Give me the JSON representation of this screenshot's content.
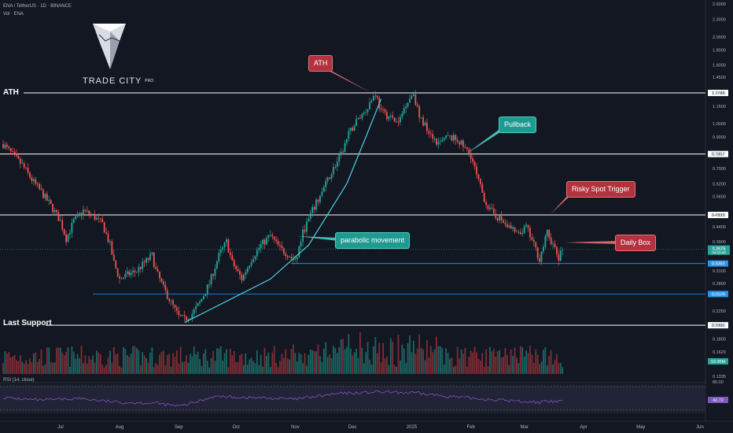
{
  "header": {
    "symbol_line": "ENA / TetherUS · 1D · BINANCE",
    "volume_line": "Vol · ENA"
  },
  "logo": {
    "name": "TRADE CITY",
    "suffix": "PRO"
  },
  "levels": [
    {
      "label": "ATH",
      "price": "1.2788",
      "value": 1.2788,
      "color": "#ffffff"
    },
    {
      "label": "",
      "price": "0.7857",
      "value": 0.7857,
      "color": "#ffffff"
    },
    {
      "label": "",
      "price": "0.4833",
      "value": 0.4833,
      "color": "#ffffff"
    },
    {
      "label": "",
      "price": "0.3282",
      "value": 0.3282,
      "color": "#2196f3"
    },
    {
      "label": "",
      "price": "0.2574",
      "value": 0.2574,
      "color": "#2196f3"
    },
    {
      "label": "Last Support",
      "price": "0.2006",
      "value": 0.2006,
      "color": "#ffffff"
    }
  ],
  "annotations": [
    {
      "id": "ath",
      "text": "ATH",
      "style": "red"
    },
    {
      "id": "pullback",
      "text": "Pullback",
      "style": "teal"
    },
    {
      "id": "risky",
      "text": "Risky Spot Trigger",
      "style": "red"
    },
    {
      "id": "parabolic",
      "text": "parabolic movement",
      "style": "teal"
    },
    {
      "id": "dailybox",
      "text": "Daily Box",
      "style": "red"
    }
  ],
  "rsi": {
    "label": "RSI (14, close)",
    "upper": "80.00",
    "value": "42.72",
    "color": "#7e57c2"
  },
  "current": {
    "price": "0.3675",
    "countdown": "04:03:48",
    "volume": "93.95M",
    "value": 0.3675
  },
  "colors": {
    "up": "#26a69a",
    "down": "#ef5350",
    "up_vol": "#1d6f6a",
    "down_vol": "#8c3036",
    "bg": "#131722",
    "curve": "#4dd0e1"
  },
  "chart_data": {
    "type": "candlestick",
    "scale": "log",
    "y_ticks": [
      "2.6000",
      "2.3000",
      "2.0000",
      "1.8000",
      "1.6000",
      "1.4500",
      "1.2788",
      "1.1500",
      "1.0000",
      "0.9000",
      "0.7857",
      "0.7000",
      "0.6200",
      "0.5600",
      "0.4833",
      "0.4400",
      "0.3900",
      "0.3675",
      "0.3282",
      "0.3100",
      "0.2800",
      "0.2574",
      "0.2250",
      "0.2006",
      "0.1800",
      "0.1620",
      "0.1335"
    ],
    "y_tick_values": [
      2.6,
      2.3,
      2.0,
      1.8,
      1.6,
      1.45,
      1.2788,
      1.15,
      1.0,
      0.9,
      0.7857,
      0.7,
      0.62,
      0.56,
      0.4833,
      0.44,
      0.39,
      0.3675,
      0.3282,
      0.31,
      0.28,
      0.2574,
      0.225,
      0.2006,
      0.18,
      0.162,
      0.1335
    ],
    "x_labels": [
      "Jul",
      "Aug",
      "Sep",
      "Oct",
      "Nov",
      "Dec",
      "2025",
      "Feb",
      "Mar",
      "Apr",
      "May",
      "Jun"
    ],
    "x_label_days": [
      30,
      61,
      92,
      122,
      153,
      183,
      214,
      245,
      273,
      304,
      334,
      365
    ],
    "start_date": "2024-06-01",
    "price_path": [
      [
        0,
        0.85
      ],
      [
        5,
        0.78
      ],
      [
        10,
        0.72
      ],
      [
        15,
        0.64
      ],
      [
        20,
        0.58
      ],
      [
        25,
        0.52
      ],
      [
        30,
        0.46
      ],
      [
        33,
        0.4
      ],
      [
        37,
        0.46
      ],
      [
        42,
        0.5
      ],
      [
        47,
        0.48
      ],
      [
        52,
        0.45
      ],
      [
        56,
        0.38
      ],
      [
        58,
        0.33
      ],
      [
        61,
        0.29
      ],
      [
        65,
        0.3
      ],
      [
        70,
        0.31
      ],
      [
        74,
        0.33
      ],
      [
        78,
        0.35
      ],
      [
        80,
        0.31
      ],
      [
        84,
        0.27
      ],
      [
        88,
        0.24
      ],
      [
        92,
        0.215
      ],
      [
        95,
        0.21
      ],
      [
        99,
        0.22
      ],
      [
        103,
        0.24
      ],
      [
        108,
        0.28
      ],
      [
        113,
        0.35
      ],
      [
        117,
        0.39
      ],
      [
        120,
        0.33
      ],
      [
        125,
        0.29
      ],
      [
        130,
        0.34
      ],
      [
        135,
        0.38
      ],
      [
        140,
        0.41
      ],
      [
        145,
        0.37
      ],
      [
        150,
        0.35
      ],
      [
        153,
        0.33
      ],
      [
        157,
        0.42
      ],
      [
        162,
        0.5
      ],
      [
        167,
        0.58
      ],
      [
        172,
        0.68
      ],
      [
        177,
        0.78
      ],
      [
        181,
        0.92
      ],
      [
        185,
        1.02
      ],
      [
        190,
        1.12
      ],
      [
        195,
        1.28
      ],
      [
        198,
        1.1
      ],
      [
        203,
        1.05
      ],
      [
        207,
        1.0
      ],
      [
        211,
        1.18
      ],
      [
        215,
        1.28
      ],
      [
        218,
        1.05
      ],
      [
        223,
        0.95
      ],
      [
        228,
        0.85
      ],
      [
        233,
        0.9
      ],
      [
        238,
        0.88
      ],
      [
        242,
        0.82
      ],
      [
        245,
        0.78
      ],
      [
        248,
        0.66
      ],
      [
        252,
        0.55
      ],
      [
        255,
        0.5
      ],
      [
        260,
        0.47
      ],
      [
        265,
        0.44
      ],
      [
        270,
        0.41
      ],
      [
        274,
        0.44
      ],
      [
        278,
        0.38
      ],
      [
        281,
        0.34
      ],
      [
        285,
        0.42
      ],
      [
        288,
        0.38
      ],
      [
        291,
        0.34
      ],
      [
        293,
        0.3675
      ]
    ],
    "rsi_path": [
      [
        0,
        52
      ],
      [
        20,
        45
      ],
      [
        40,
        50
      ],
      [
        60,
        40
      ],
      [
        80,
        38
      ],
      [
        92,
        30
      ],
      [
        110,
        55
      ],
      [
        130,
        52
      ],
      [
        153,
        48
      ],
      [
        175,
        62
      ],
      [
        195,
        66
      ],
      [
        215,
        64
      ],
      [
        240,
        52
      ],
      [
        260,
        46
      ],
      [
        280,
        40
      ],
      [
        293,
        42.72
      ]
    ],
    "parabolic_curve": [
      [
        95,
        0.205
      ],
      [
        140,
        0.29
      ],
      [
        160,
        0.38
      ],
      [
        180,
        0.62
      ],
      [
        190,
        0.9
      ],
      [
        198,
        1.22
      ]
    ]
  }
}
